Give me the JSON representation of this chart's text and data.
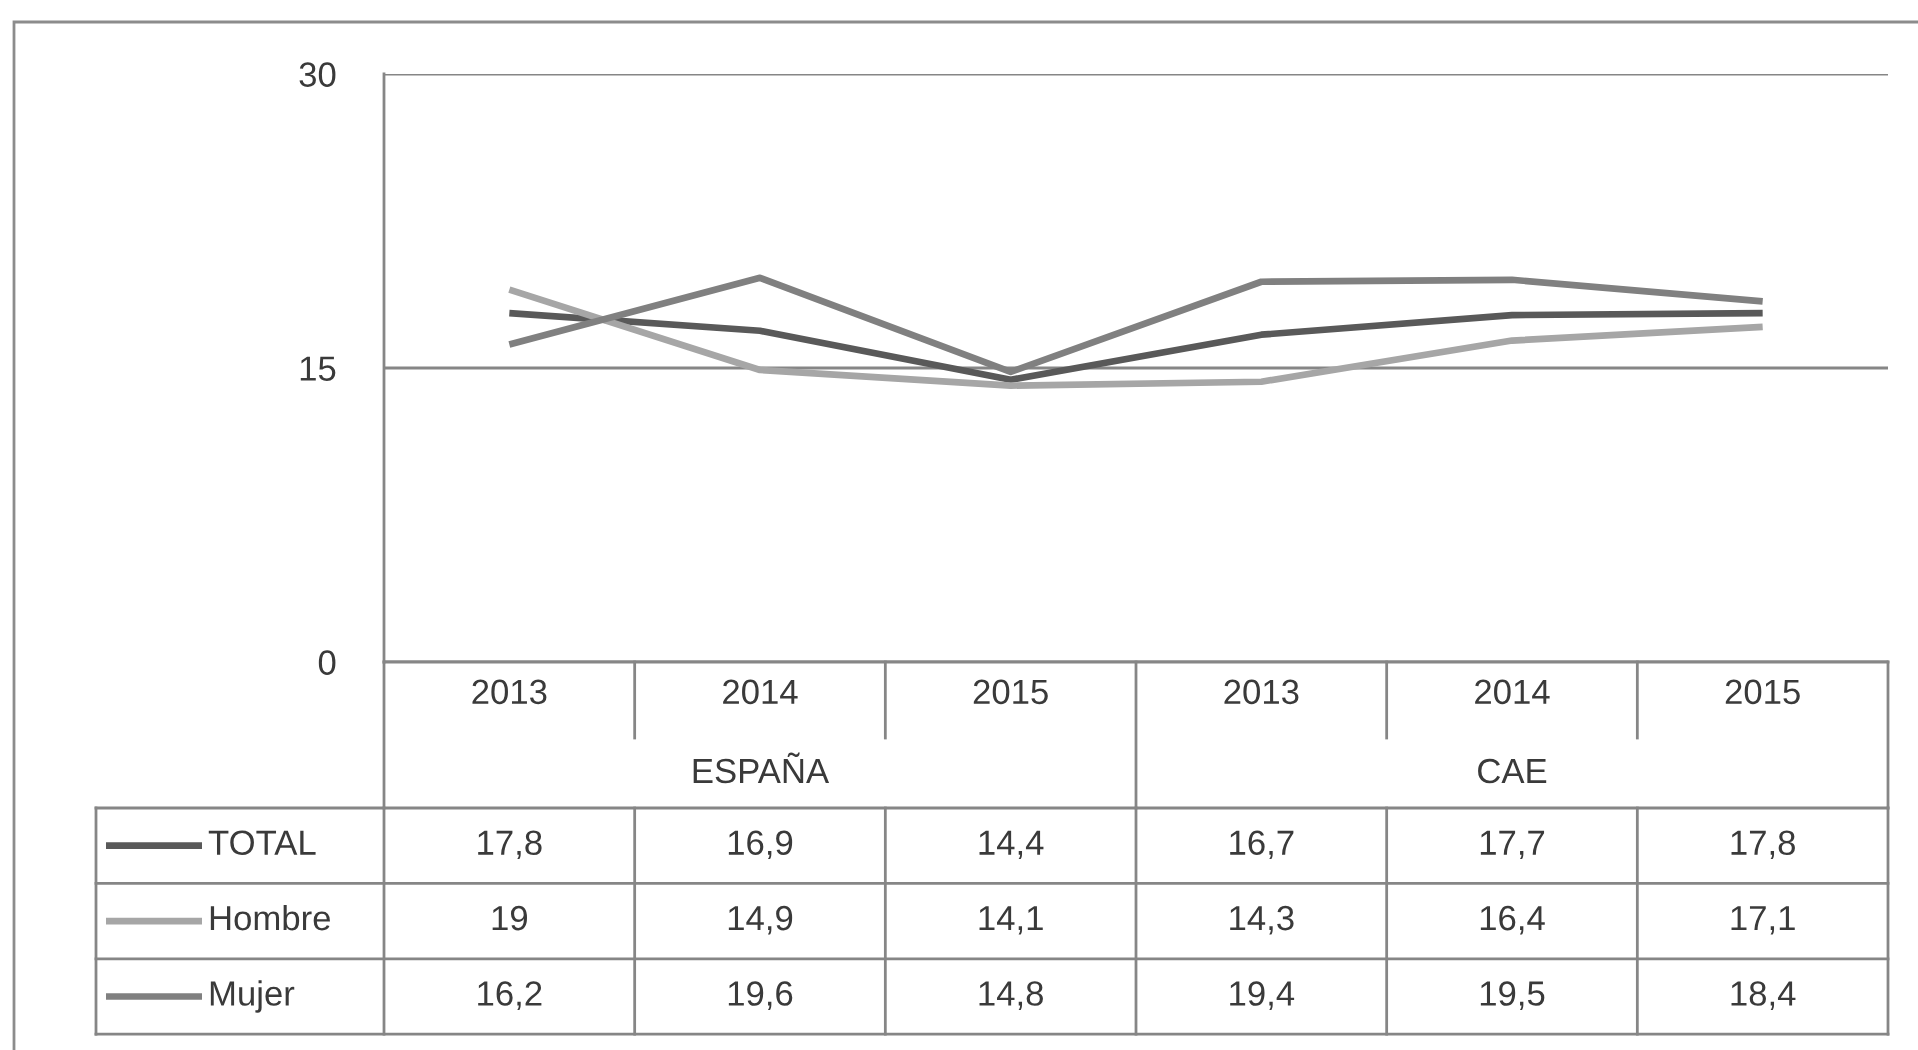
{
  "chart_data": {
    "type": "line",
    "categories": [
      "2013",
      "2014",
      "2015",
      "2013",
      "2014",
      "2015"
    ],
    "annotations": [
      "ESPAÑA",
      "CAE"
    ],
    "series": [
      {
        "name": "TOTAL",
        "color": "#595959",
        "values": [
          17.8,
          16.9,
          14.4,
          16.7,
          17.7,
          17.8
        ],
        "value_labels": [
          "17,8",
          "16,9",
          "14,4",
          "16,7",
          "17,7",
          "17,8"
        ]
      },
      {
        "name": "Hombre",
        "color": "#a6a6a6",
        "values": [
          19,
          14.9,
          14.1,
          14.3,
          16.4,
          17.1
        ],
        "value_labels": [
          "19",
          "14,9",
          "14,1",
          "14,3",
          "16,4",
          "17,1"
        ]
      },
      {
        "name": "Mujer",
        "color": "#808080",
        "values": [
          16.2,
          19.6,
          14.8,
          19.4,
          19.5,
          18.4
        ],
        "value_labels": [
          "16,2",
          "19,6",
          "14,8",
          "19,4",
          "19,5",
          "18,4"
        ]
      }
    ],
    "ylim": [
      0,
      30
    ],
    "yticks": [
      0,
      15,
      30
    ],
    "grid": "y",
    "legend": "bottom"
  }
}
